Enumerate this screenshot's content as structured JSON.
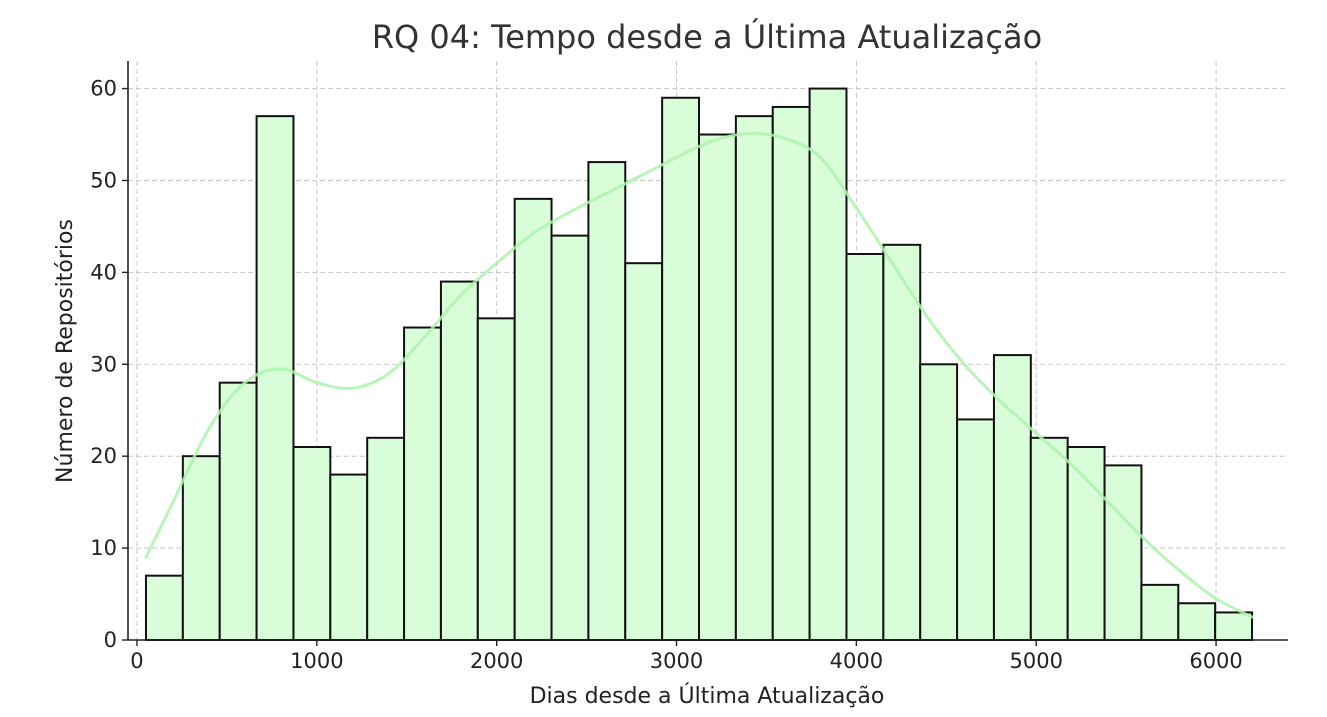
{
  "chart_data": {
    "type": "bar",
    "subtype": "histogram",
    "title": "RQ 04: Tempo desde a Última Atualização",
    "xlabel": "Dias desde a Última Atualização",
    "ylabel": "Número de Repositórios",
    "xlim": [
      -50,
      6400
    ],
    "ylim": [
      0,
      63
    ],
    "xticks": [
      0,
      1000,
      2000,
      3000,
      4000,
      5000,
      6000
    ],
    "yticks": [
      0,
      10,
      20,
      30,
      40,
      50,
      60
    ],
    "grid": true,
    "legend": "none",
    "colors": {
      "bar_fill": "#d9fcd9",
      "bar_edge": "#111111",
      "kde_line": "#aaf5aa"
    },
    "bins": [
      {
        "start": 50,
        "end": 255,
        "count": 7
      },
      {
        "start": 255,
        "end": 460,
        "count": 20
      },
      {
        "start": 460,
        "end": 665,
        "count": 28
      },
      {
        "start": 665,
        "end": 870,
        "count": 57
      },
      {
        "start": 870,
        "end": 1075,
        "count": 21
      },
      {
        "start": 1075,
        "end": 1280,
        "count": 18
      },
      {
        "start": 1280,
        "end": 1485,
        "count": 22
      },
      {
        "start": 1485,
        "end": 1690,
        "count": 34
      },
      {
        "start": 1690,
        "end": 1895,
        "count": 39
      },
      {
        "start": 1895,
        "end": 2100,
        "count": 35
      },
      {
        "start": 2100,
        "end": 2305,
        "count": 48
      },
      {
        "start": 2305,
        "end": 2510,
        "count": 44
      },
      {
        "start": 2510,
        "end": 2715,
        "count": 52
      },
      {
        "start": 2715,
        "end": 2920,
        "count": 41
      },
      {
        "start": 2920,
        "end": 3125,
        "count": 59
      },
      {
        "start": 3125,
        "end": 3330,
        "count": 55
      },
      {
        "start": 3330,
        "end": 3535,
        "count": 57
      },
      {
        "start": 3535,
        "end": 3740,
        "count": 58
      },
      {
        "start": 3740,
        "end": 3945,
        "count": 60
      },
      {
        "start": 3945,
        "end": 4150,
        "count": 42
      },
      {
        "start": 4150,
        "end": 4355,
        "count": 43
      },
      {
        "start": 4355,
        "end": 4560,
        "count": 30
      },
      {
        "start": 4560,
        "end": 4765,
        "count": 24
      },
      {
        "start": 4765,
        "end": 4970,
        "count": 31
      },
      {
        "start": 4970,
        "end": 5175,
        "count": 22
      },
      {
        "start": 5175,
        "end": 5380,
        "count": 21
      },
      {
        "start": 5380,
        "end": 5585,
        "count": 19
      },
      {
        "start": 5585,
        "end": 5790,
        "count": 6
      },
      {
        "start": 5790,
        "end": 5995,
        "count": 4
      },
      {
        "start": 5995,
        "end": 6200,
        "count": 3
      }
    ],
    "kde": {
      "x": [
        50,
        200,
        400,
        600,
        800,
        1000,
        1200,
        1400,
        1600,
        1800,
        2000,
        2200,
        2400,
        2600,
        2800,
        3000,
        3200,
        3400,
        3600,
        3800,
        4000,
        4200,
        4400,
        4600,
        4800,
        5000,
        5200,
        5400,
        5600,
        5800,
        6000,
        6200
      ],
      "y": [
        9,
        15,
        23,
        28,
        29.5,
        28,
        27.4,
        29,
        33,
        37.5,
        41,
        44.2,
        46.5,
        48.5,
        50.5,
        52.5,
        54.3,
        55.1,
        54.6,
        52.5,
        47,
        41,
        35,
        30,
        26,
        22.5,
        19,
        15,
        11,
        7.5,
        4.5,
        2.5
      ]
    }
  }
}
